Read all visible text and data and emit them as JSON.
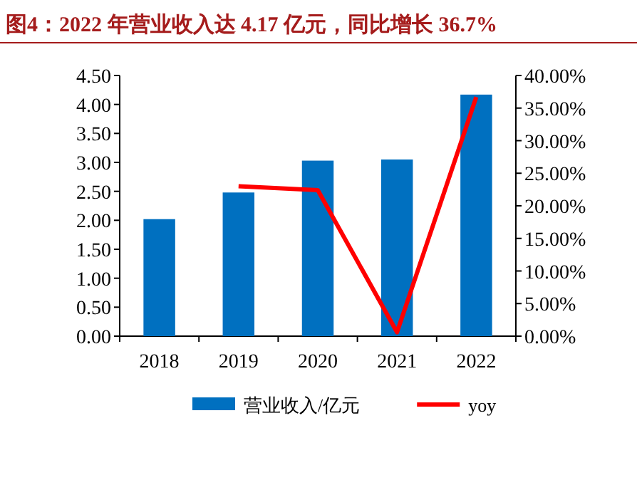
{
  "chart_data": {
    "type": "bar",
    "title": "图4：2022 年营业收入达 4.17 亿元，同比增长 36.7%",
    "categories": [
      "2018",
      "2019",
      "2020",
      "2021",
      "2022"
    ],
    "series": [
      {
        "name": "营业收入/亿元",
        "color": "#0070c0",
        "values": [
          2.02,
          2.48,
          3.03,
          3.05,
          4.17
        ]
      },
      {
        "name": "yoy",
        "type": "line",
        "axis": "y2",
        "color": "#ff0000",
        "values": [
          null,
          23.0,
          22.4,
          0.6,
          36.7
        ]
      }
    ],
    "ylim": [
      0,
      4.5
    ],
    "yticks": [
      {
        "value": 0,
        "label": "0.00"
      },
      {
        "value": 0.5,
        "label": "0.50"
      },
      {
        "value": 1,
        "label": "1.00"
      },
      {
        "value": 1.5,
        "label": "1.50"
      },
      {
        "value": 2,
        "label": "2.00"
      },
      {
        "value": 2.5,
        "label": "2.50"
      },
      {
        "value": 3,
        "label": "3.00"
      },
      {
        "value": 3.5,
        "label": "3.50"
      },
      {
        "value": 4,
        "label": "4.00"
      },
      {
        "value": 4.5,
        "label": "4.50"
      }
    ],
    "y2lim": [
      0,
      40
    ],
    "y2ticks": [
      {
        "value": 0,
        "label": "0.00%"
      },
      {
        "value": 5,
        "label": "5.00%"
      },
      {
        "value": 10,
        "label": "10.00%"
      },
      {
        "value": 15,
        "label": "15.00%"
      },
      {
        "value": 20,
        "label": "20.00%"
      },
      {
        "value": 25,
        "label": "25.00%"
      },
      {
        "value": 30,
        "label": "30.00%"
      },
      {
        "value": 35,
        "label": "35.00%"
      },
      {
        "value": 40,
        "label": "40.00%"
      }
    ],
    "legend": "bottom"
  }
}
